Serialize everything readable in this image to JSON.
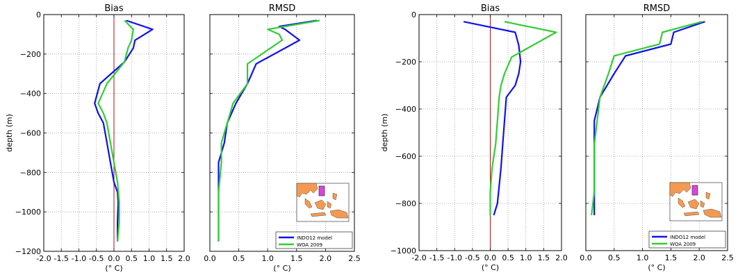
{
  "colors": {
    "model": "#1010ee",
    "woa": "#33cc33",
    "zero_line": "#aa1111",
    "map_land": "#f39a52",
    "map_box": "#dd44dd",
    "grid": "#9a9a9a"
  },
  "chart_data": [
    {
      "type": "line",
      "title": "Bias",
      "xlabel": "(° C)",
      "ylabel": "depth (m)",
      "xlim": [
        -2.0,
        2.0
      ],
      "ylim": [
        -1200,
        0
      ],
      "xticks": [
        "-2.0",
        "-1.5",
        "-1.0",
        "-0.5",
        "0.0",
        "0.5",
        "1.0",
        "1.5",
        "2.0"
      ],
      "yticks": [
        "0",
        "−200",
        "−400",
        "−600",
        "−800",
        "−1000",
        "−1200"
      ],
      "grid": true,
      "vertical_line_at": 0.0,
      "series": [
        {
          "name": "INDO12 model",
          "x": [
            0.35,
            1.1,
            0.6,
            0.55,
            0.3,
            -0.4,
            -0.55,
            -0.45,
            -0.3,
            -0.2,
            -0.1,
            0.0,
            0.1,
            0.12,
            0.1,
            0.1
          ],
          "y": [
            -30,
            -75,
            -130,
            -170,
            -240,
            -350,
            -450,
            -500,
            -550,
            -650,
            -750,
            -850,
            -900,
            -950,
            -1050,
            -1150
          ]
        },
        {
          "name": "WOA 2009",
          "x": [
            0.3,
            0.55,
            0.5,
            0.4,
            0.3,
            -0.2,
            -0.45,
            -0.3,
            -0.2,
            -0.1,
            0.0,
            0.1,
            0.15,
            0.15,
            0.1
          ],
          "y": [
            -30,
            -75,
            -130,
            -170,
            -240,
            -350,
            -450,
            -500,
            -550,
            -650,
            -750,
            -850,
            -950,
            -1050,
            -1150
          ]
        }
      ]
    },
    {
      "type": "line",
      "title": "RMSD",
      "xlabel": "(° C)",
      "xlim": [
        0.0,
        2.5
      ],
      "ylim": [
        -1200,
        0
      ],
      "xticks": [
        "0.0",
        "0.5",
        "1.0",
        "1.5",
        "2.0",
        "2.5"
      ],
      "grid": true,
      "legend_placement": "bottom-right",
      "inset_map": true,
      "series": [
        {
          "name": "INDO12 model",
          "x": [
            1.85,
            1.2,
            1.3,
            1.55,
            0.8,
            0.65,
            0.45,
            0.3,
            0.25,
            0.15,
            0.15,
            0.15,
            0.15
          ],
          "y": [
            -30,
            -60,
            -75,
            -130,
            -250,
            -350,
            -450,
            -550,
            -650,
            -750,
            -900,
            -1050,
            -1150
          ]
        },
        {
          "name": "WOA 2009",
          "x": [
            1.9,
            1.0,
            1.2,
            1.25,
            0.65,
            0.65,
            0.4,
            0.3,
            0.2,
            0.2,
            0.15,
            0.15,
            0.15
          ],
          "y": [
            -30,
            -75,
            -100,
            -130,
            -250,
            -350,
            -450,
            -550,
            -650,
            -750,
            -900,
            -1050,
            -1150
          ]
        }
      ]
    },
    {
      "type": "line",
      "title": "Bias",
      "xlabel": "(° C)",
      "ylabel": "depth (m)",
      "xlim": [
        -2.0,
        2.0
      ],
      "ylim": [
        -1000,
        0
      ],
      "xticks": [
        "-2.0",
        "-1.5",
        "-1.0",
        "-0.5",
        "0.0",
        "0.5",
        "1.0",
        "1.5",
        "2.0"
      ],
      "yticks": [
        "0",
        "−200",
        "−400",
        "−600",
        "−800",
        "−1000"
      ],
      "grid": true,
      "vertical_line_at": 0.0,
      "series": [
        {
          "name": "INDO12 model",
          "x": [
            -0.75,
            0.7,
            0.8,
            0.85,
            0.8,
            0.7,
            0.45,
            0.4,
            0.35,
            0.3,
            0.2,
            0.1
          ],
          "y": [
            -30,
            -75,
            -130,
            -200,
            -250,
            -300,
            -350,
            -450,
            -550,
            -650,
            -800,
            -850
          ]
        },
        {
          "name": "WOA 2009",
          "x": [
            0.4,
            1.85,
            0.6,
            0.4,
            0.3,
            0.25,
            0.2,
            0.15,
            0.1,
            0.05,
            0.0,
            0.0
          ],
          "y": [
            -30,
            -75,
            -180,
            -250,
            -300,
            -350,
            -450,
            -550,
            -600,
            -650,
            -750,
            -850
          ]
        }
      ]
    },
    {
      "type": "line",
      "title": "RMSD",
      "xlabel": "(° C)",
      "xlim": [
        0.0,
        2.5
      ],
      "ylim": [
        -1000,
        0
      ],
      "xticks": [
        "0.0",
        "0.5",
        "1.0",
        "1.5",
        "2.0",
        "2.5"
      ],
      "grid": true,
      "legend_placement": "bottom-right",
      "inset_map": true,
      "series": [
        {
          "name": "INDO12 model",
          "x": [
            2.1,
            1.55,
            1.5,
            0.7,
            0.5,
            0.25,
            0.15,
            0.15,
            0.15,
            0.15,
            0.15
          ],
          "y": [
            -30,
            -75,
            -125,
            -175,
            -250,
            -350,
            -450,
            -550,
            -650,
            -750,
            -850
          ]
        },
        {
          "name": "WOA 2009",
          "x": [
            2.05,
            1.35,
            1.3,
            0.5,
            0.4,
            0.25,
            0.2,
            0.15,
            0.15,
            0.15,
            0.1
          ],
          "y": [
            -30,
            -75,
            -125,
            -175,
            -250,
            -350,
            -450,
            -550,
            -650,
            -750,
            -850
          ]
        }
      ]
    }
  ]
}
